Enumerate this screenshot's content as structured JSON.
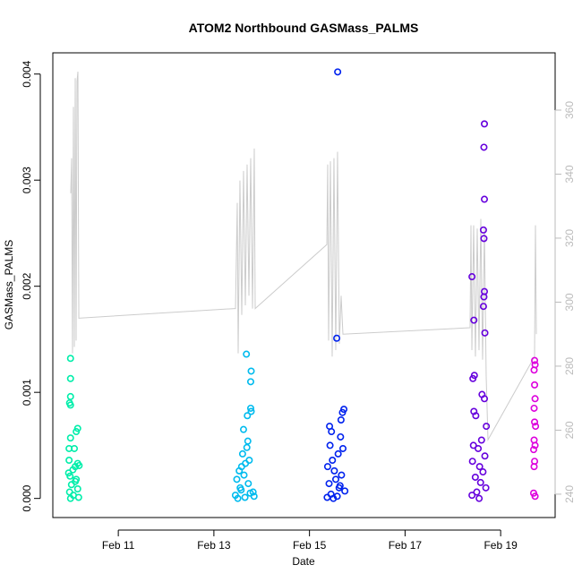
{
  "chart_data": {
    "type": "scatter",
    "title": "ATOM2 Northbound GASMass_PALMS",
    "x_label": "Date",
    "y_label": "GASMass_PALMS",
    "xlim": [
      9.63,
      20.14
    ],
    "xticks": [
      {
        "value": 11,
        "label": "Feb 11"
      },
      {
        "value": 13,
        "label": "Feb 13"
      },
      {
        "value": 15,
        "label": "Feb 15"
      },
      {
        "value": 17,
        "label": "Feb 17"
      },
      {
        "value": 19,
        "label": "Feb 19"
      }
    ],
    "ylim": [
      -0.00018,
      0.0042
    ],
    "yticks": [
      {
        "value": 0,
        "label": "0.000"
      },
      {
        "value": 0.001,
        "label": "0.001"
      },
      {
        "value": 0.002,
        "label": "0.002"
      },
      {
        "value": 0.003,
        "label": "0.003"
      },
      {
        "value": 0.004,
        "label": "0.004"
      }
    ],
    "y2lim": [
      232.7,
      377.9
    ],
    "y2ticks": [
      240,
      260,
      280,
      300,
      320,
      340,
      360
    ],
    "y2_color": "#bbbbbb",
    "series": [
      {
        "type": "line",
        "axis": "y2",
        "color": "#cccccc",
        "x": [
          10.005,
          10.023,
          10.042,
          10.061,
          10.08,
          10.099,
          10.117,
          10.136,
          10.155,
          10.174,
          13.433,
          13.452,
          13.489,
          13.508,
          13.545,
          13.583,
          13.62,
          13.658,
          13.695,
          13.733,
          13.77,
          13.808,
          13.845,
          13.864,
          15.363,
          15.381,
          15.4,
          15.438,
          15.475,
          15.512,
          15.55,
          15.587,
          15.625,
          15.662,
          15.7,
          18.36,
          18.379,
          18.398,
          18.435,
          18.472,
          18.51,
          18.547,
          18.585,
          18.622,
          18.66,
          18.697,
          18.735,
          19.709,
          19.728,
          19.747
        ],
        "values": [
          334,
          345,
          284,
          361,
          286,
          370,
          288,
          369,
          372,
          295,
          298,
          298,
          331,
          284,
          338,
          296,
          341,
          299,
          343,
          302,
          345,
          298,
          348,
          298,
          318,
          343,
          288,
          344,
          283,
          345,
          285,
          347,
          287,
          302,
          290,
          292,
          324,
          285,
          324,
          283,
          323,
          285,
          326,
          282,
          323,
          277,
          257,
          283,
          324,
          290
        ]
      },
      {
        "color": "#00eeaa",
        "x": [
          10.0,
          10.0,
          10.0,
          9.98,
          10.0,
          10.15,
          10.12,
          10.0,
          9.97,
          10.08,
          9.97,
          10.15,
          10.18,
          10.1,
          10.05,
          9.99,
          10.1,
          10.02,
          10.15,
          9.98,
          10.06,
          10.17,
          10.0,
          10.12,
          9.96
        ],
        "values": [
          0.00132,
          0.00113,
          0.00096,
          0.0009,
          0.00088,
          0.00066,
          0.00063,
          0.00057,
          0.00047,
          0.00047,
          0.00036,
          0.00033,
          0.00031,
          0.0003,
          0.00027,
          0.00021,
          0.00016,
          0.00013,
          9e-05,
          6e-05,
          3e-05,
          1e-05,
          0,
          0.00018,
          0.00024
        ]
      },
      {
        "color": "#00bbee",
        "x": [
          13.68,
          13.78,
          13.77,
          13.77,
          13.78,
          13.7,
          13.62,
          13.71,
          13.69,
          13.6,
          13.74,
          13.66,
          13.58,
          13.53,
          13.63,
          13.48,
          13.72,
          13.55,
          13.82,
          13.45,
          13.65,
          13.5,
          13.84,
          13.76,
          13.57
        ],
        "values": [
          0.00136,
          0.0012,
          0.0011,
          0.00085,
          0.00082,
          0.00078,
          0.00065,
          0.00054,
          0.00048,
          0.00042,
          0.00036,
          0.00033,
          0.0003,
          0.00026,
          0.00022,
          0.00018,
          0.00014,
          0.0001,
          6e-05,
          3e-05,
          1e-05,
          0,
          2e-05,
          5e-05,
          8e-05
        ]
      },
      {
        "color": "#0022ee",
        "x": [
          15.59,
          15.57,
          15.72,
          15.69,
          15.66,
          15.42,
          15.46,
          15.65,
          15.43,
          15.7,
          15.6,
          15.48,
          15.38,
          15.52,
          15.67,
          15.55,
          15.41,
          15.62,
          15.74,
          15.45,
          15.58,
          15.5,
          15.37,
          15.64
        ],
        "values": [
          0.00402,
          0.00151,
          0.00084,
          0.00081,
          0.00074,
          0.00068,
          0.00063,
          0.00058,
          0.0005,
          0.00047,
          0.00042,
          0.00036,
          0.0003,
          0.00026,
          0.00022,
          0.00018,
          0.00014,
          0.0001,
          7e-05,
          4e-05,
          2e-05,
          0,
          1e-05,
          0.00012
        ]
      },
      {
        "color": "#6600dd",
        "x": [
          18.66,
          18.65,
          18.66,
          18.64,
          18.65,
          18.4,
          18.66,
          18.65,
          18.64,
          18.44,
          18.67,
          18.45,
          18.42,
          18.61,
          18.66,
          18.44,
          18.48,
          18.7,
          18.6,
          18.43,
          18.53,
          18.67,
          18.41,
          18.56,
          18.63,
          18.47,
          18.58,
          18.69,
          18.5,
          18.4,
          18.55
        ],
        "values": [
          0.00353,
          0.00331,
          0.00282,
          0.00253,
          0.00245,
          0.00209,
          0.00195,
          0.0019,
          0.00181,
          0.00168,
          0.00156,
          0.00116,
          0.00113,
          0.00098,
          0.00094,
          0.00082,
          0.00078,
          0.00068,
          0.00055,
          0.0005,
          0.00047,
          0.0004,
          0.00035,
          0.0003,
          0.00025,
          0.0002,
          0.00015,
          0.0001,
          6e-05,
          3e-05,
          0
        ]
      },
      {
        "color": "#dd00dd",
        "x": [
          19.71,
          19.72,
          19.7,
          19.71,
          19.72,
          19.7,
          19.71,
          19.73,
          19.7,
          19.72,
          19.69,
          19.71,
          19.7,
          19.69,
          19.72
        ],
        "values": [
          0.0013,
          0.00126,
          0.00121,
          0.00107,
          0.00094,
          0.00085,
          0.00072,
          0.00068,
          0.00055,
          0.0005,
          0.00046,
          0.00035,
          0.0003,
          5e-05,
          2e-05
        ]
      }
    ]
  }
}
